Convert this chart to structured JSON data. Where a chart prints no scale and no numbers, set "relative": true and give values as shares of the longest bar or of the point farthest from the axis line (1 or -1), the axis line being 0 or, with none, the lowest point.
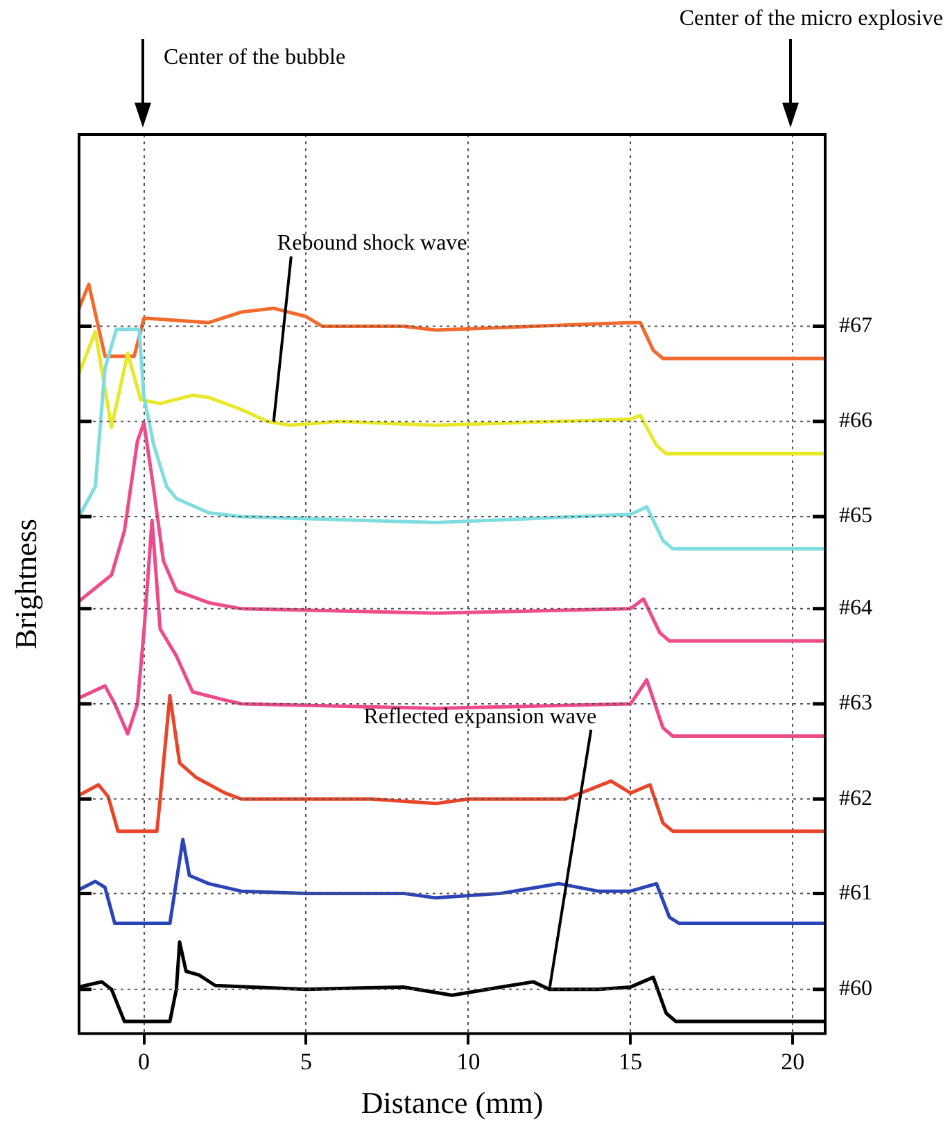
{
  "chart_data": {
    "type": "line",
    "relative": true,
    "xlabel": "Distance (mm)",
    "ylabel": "Brightness",
    "xlim": [
      -2,
      21
    ],
    "xticks": [
      0,
      5,
      10,
      15,
      20
    ],
    "grid": "x",
    "legend": false,
    "marker": "none",
    "line_style": "solid",
    "series": [
      {
        "color": "#000000",
        "x": [
          -2,
          -1.5,
          -1.3,
          -1,
          -0.6,
          0.8,
          1,
          1.1,
          1.3,
          1.7,
          2.2,
          5,
          8,
          9.5,
          11,
          12,
          12.5,
          14,
          15,
          15.7,
          16.1,
          16.4,
          21
        ],
        "values": [
          0.062,
          0.067,
          0.069,
          0.059,
          0.016,
          0.016,
          0.059,
          0.122,
          0.083,
          0.078,
          0.064,
          0.059,
          0.062,
          0.051,
          0.062,
          0.069,
          0.059,
          0.059,
          0.062,
          0.075,
          0.027,
          0.016,
          0.016
        ]
      },
      {
        "color": "#2b44b8",
        "x": [
          -2,
          -1.5,
          -1.2,
          -0.9,
          0.8,
          1,
          1.2,
          1.4,
          2,
          3,
          5,
          8,
          9,
          11,
          12.8,
          14,
          15,
          15.8,
          16.2,
          16.5,
          21
        ],
        "values": [
          0.192,
          0.203,
          0.195,
          0.147,
          0.147,
          0.203,
          0.259,
          0.211,
          0.2,
          0.19,
          0.187,
          0.187,
          0.181,
          0.187,
          0.2,
          0.19,
          0.19,
          0.2,
          0.155,
          0.147,
          0.147
        ]
      },
      {
        "color": "#e8452a",
        "x": [
          -2,
          -1.4,
          -1.1,
          -0.8,
          0.4,
          0.5,
          0.8,
          1.1,
          1.6,
          2.5,
          3,
          7,
          9,
          10,
          13,
          14.4,
          15,
          15.6,
          16,
          16.3,
          21
        ],
        "values": [
          0.318,
          0.332,
          0.316,
          0.27,
          0.27,
          0.313,
          0.451,
          0.361,
          0.342,
          0.321,
          0.313,
          0.313,
          0.307,
          0.313,
          0.313,
          0.337,
          0.321,
          0.332,
          0.281,
          0.27,
          0.27
        ]
      },
      {
        "color": "#ec4a8a",
        "x": [
          -2,
          -1.2,
          -0.9,
          -0.5,
          -0.2,
          0,
          0.25,
          0.5,
          1,
          1.5,
          2.5,
          3,
          9,
          15,
          15.5,
          16,
          16.3,
          21
        ],
        "values": [
          0.448,
          0.464,
          0.44,
          0.4,
          0.44,
          0.536,
          0.685,
          0.54,
          0.504,
          0.456,
          0.445,
          0.44,
          0.434,
          0.44,
          0.472,
          0.408,
          0.397,
          0.397
        ]
      },
      {
        "color": "#ee4d87",
        "x": [
          -2,
          -1,
          -0.6,
          -0.2,
          0,
          0.3,
          0.6,
          1,
          2,
          3,
          9,
          15,
          15.4,
          15.9,
          16.2,
          21
        ],
        "values": [
          0.577,
          0.612,
          0.671,
          0.791,
          0.815,
          0.727,
          0.631,
          0.591,
          0.575,
          0.567,
          0.561,
          0.567,
          0.58,
          0.535,
          0.524,
          0.524
        ]
      },
      {
        "color": "#7fdde0",
        "x": [
          -2,
          -1.5,
          -1.2,
          -0.85,
          -0.15,
          0,
          0.3,
          0.7,
          1,
          2,
          3,
          9,
          15,
          15.5,
          16,
          16.3,
          21
        ],
        "values": [
          0.69,
          0.73,
          0.888,
          0.94,
          0.94,
          0.85,
          0.786,
          0.73,
          0.714,
          0.695,
          0.69,
          0.682,
          0.693,
          0.703,
          0.658,
          0.647,
          0.647
        ]
      },
      {
        "color": "#e8e82a",
        "x": [
          -2,
          -1.5,
          -1,
          -0.5,
          -0.1,
          0.5,
          1.5,
          2,
          3,
          3.8,
          4.5,
          6,
          9,
          15,
          15.3,
          15.8,
          16.1,
          21
        ],
        "values": [
          0.881,
          0.937,
          0.809,
          0.908,
          0.846,
          0.841,
          0.852,
          0.849,
          0.833,
          0.817,
          0.812,
          0.817,
          0.812,
          0.82,
          0.825,
          0.785,
          0.774,
          0.774
        ]
      },
      {
        "color": "#f26a2e",
        "x": [
          -2,
          -1.7,
          -1.2,
          -0.3,
          0,
          1,
          2,
          3,
          4,
          5,
          5.5,
          8,
          9,
          15,
          15.3,
          15.7,
          16,
          21
        ],
        "values": [
          0.968,
          1,
          0.904,
          0.904,
          0.955,
          0.952,
          0.949,
          0.963,
          0.968,
          0.957,
          0.944,
          0.944,
          0.939,
          0.949,
          0.949,
          0.912,
          0.901,
          0.901
        ]
      }
    ],
    "ref_lines": [
      {
        "axis": "y",
        "value": 0.059
      },
      {
        "axis": "y",
        "value": 0.187
      },
      {
        "axis": "y",
        "value": 0.313
      },
      {
        "axis": "y",
        "value": 0.44
      },
      {
        "axis": "y",
        "value": 0.567
      },
      {
        "axis": "y",
        "value": 0.69
      },
      {
        "axis": "y",
        "value": 0.817
      },
      {
        "axis": "y",
        "value": 0.944
      }
    ],
    "annotations": [
      "Center of the bubble",
      "Center of the micro explosive",
      "#60",
      "#61",
      "#62",
      "#63",
      "#64",
      "#65",
      "#66",
      "#67",
      {
        "text": "Rebound shock wave",
        "x": 4,
        "y": 0.817
      },
      {
        "text": "Reflected expansion wave",
        "x": 12.5,
        "y": 0.059
      }
    ]
  }
}
